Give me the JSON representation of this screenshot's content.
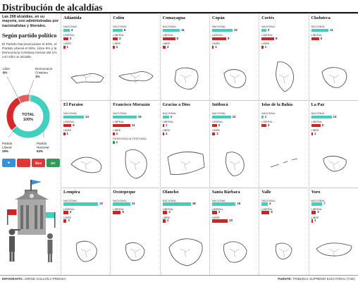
{
  "title": "Distribución de alcaldías",
  "intro": "Las 298 alcaldías, en su mayoría, son administradas por nacionalistas y liberales.",
  "subtitle": "Según partido político",
  "summary": "El Partido Nacional posee el 63%, el Partido Liberal el 29%, Libre 9% y la Democracia Cristiana menos del 1% con sólo un alcalde.",
  "donut": {
    "center_label": "TOTAL",
    "center_value": "100%",
    "labels": [
      {
        "name": "Libre",
        "pct": "9%"
      },
      {
        "name": "Democracia Cristiana",
        "pct": "1%"
      },
      {
        "name": "Partido Liberal",
        "pct": "29%"
      },
      {
        "name": "Partido Nacional",
        "pct": "63%"
      }
    ]
  },
  "party_icons": [
    {
      "name": "nacional-flag-icon",
      "color": "#3a8fd6",
      "text": "★"
    },
    {
      "name": "liberal-flag-icon",
      "color": "#d83a3a",
      "text": ""
    },
    {
      "name": "libre-flag-icon",
      "color": "#d83a3a",
      "text": "libre"
    },
    {
      "name": "dc-flag-icon",
      "color": "#2f9a5a",
      "text": "DC"
    }
  ],
  "colors": {
    "nacional": "#40d0bd",
    "liberal": "#cf2424",
    "libre": "#cf2424",
    "dc": "#2f9a5a",
    "donut_nacional": "#40d0bd",
    "donut_liberal": "#d62a2a",
    "donut_libre": "#e35b5b",
    "donut_dc": "#2f9a5a"
  },
  "row_labels": {
    "nacional": "NACIONAL",
    "liberal": "LIBERAL",
    "libre": "LIBRE",
    "dc": "DEMOCRACIA CRISTIANA"
  },
  "footer": {
    "credit_label": "INFOGRAFÍA:",
    "credit_name": "JORGE GALLO/LA PRENSA",
    "source_label": "FUENTE:",
    "source_name": "TRIBUNAL SUPREMO ELECTORAL (TSE)"
  },
  "chart_data": [
    {
      "type": "pie",
      "title": "Según partido político",
      "categories": [
        "Partido Nacional",
        "Partido Liberal",
        "Libre",
        "Democracia Cristiana"
      ],
      "values": [
        63,
        29,
        9,
        1
      ]
    },
    {
      "type": "bar",
      "title": "Distribución de alcaldías",
      "xlim": [
        0,
        25
      ],
      "departments": [
        {
          "name": "Atlántida",
          "nacional": 4,
          "liberal": 3,
          "libre": 1
        },
        {
          "name": "Colón",
          "nacional": 6,
          "liberal": 3,
          "libre": 1
        },
        {
          "name": "Comayagua",
          "nacional": 11,
          "liberal": 8,
          "libre": 2
        },
        {
          "name": "Copán",
          "nacional": 13,
          "liberal": 9,
          "libre": 1
        },
        {
          "name": "Cortés",
          "nacional": 3,
          "liberal": 8,
          "libre": 1
        },
        {
          "name": "Choluteca",
          "nacional": 11,
          "liberal": 5
        },
        {
          "name": "El Paraíso",
          "nacional": 13,
          "liberal": 5,
          "libre": 1
        },
        {
          "name": "Francisco Morazán",
          "nacional": 15,
          "liberal": 11,
          "libre": 1,
          "dc": 1
        },
        {
          "name": "Gracias a Dios",
          "nacional": 4,
          "liberal": 1,
          "libre": 1
        },
        {
          "name": "Intibucá",
          "nacional": 12,
          "liberal": 3,
          "libre": 2
        },
        {
          "name": "Islas de la Bahía",
          "nacional": 1,
          "liberal": 3
        },
        {
          "name": "La Paz",
          "nacional": 13,
          "liberal": 6,
          "libre": 1
        },
        {
          "name": "Lempira",
          "nacional": 22,
          "liberal": 3,
          "libre": 2
        },
        {
          "name": "Ocotepeque",
          "nacional": 11,
          "liberal": 5
        },
        {
          "name": "Olancho",
          "nacional": 18,
          "liberal": 3,
          "libre": 2
        },
        {
          "name": "Santa Bárbara",
          "nacional": 15,
          "liberal": 3,
          "libre": 10
        },
        {
          "name": "Valle",
          "nacional": 4,
          "liberal": 5
        },
        {
          "name": "Yoro",
          "nacional": 7,
          "liberal": 3,
          "libre": 1
        }
      ]
    }
  ]
}
